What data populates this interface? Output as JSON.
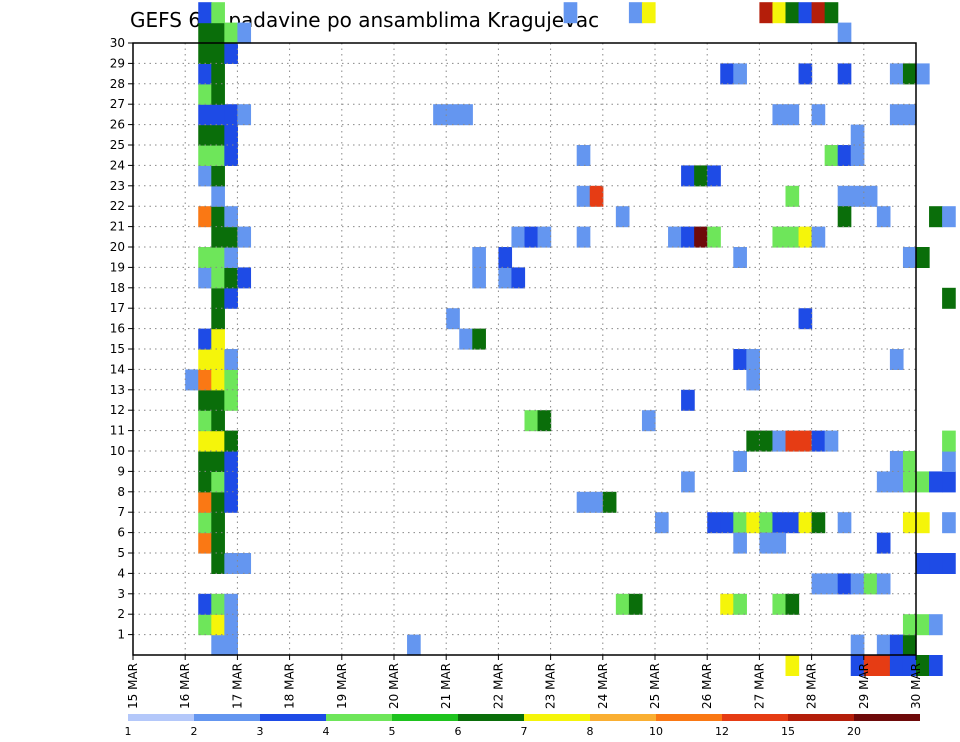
{
  "chart_data": {
    "type": "heatmap",
    "title": "GEFS 6hr padavine po ansamblima Kragujevac",
    "xlabel": "",
    "ylabel": "",
    "x_ticks": [
      "15 MAR",
      "16 MAR",
      "17 MAR",
      "18 MAR",
      "19 MAR",
      "20 MAR",
      "21 MAR",
      "22 MAR",
      "23 MAR",
      "24 MAR",
      "25 MAR",
      "26 MAR",
      "27 MAR",
      "28 MAR",
      "29 MAR",
      "30 MAR"
    ],
    "y_ticks": [
      "1",
      "2",
      "3",
      "4",
      "5",
      "6",
      "7",
      "8",
      "9",
      "10",
      "11",
      "12",
      "13",
      "14",
      "15",
      "16",
      "17",
      "18",
      "19",
      "20",
      "21",
      "22",
      "23",
      "24",
      "25",
      "26",
      "27",
      "28",
      "29",
      "30"
    ],
    "x_range_days": [
      0,
      15
    ],
    "y_range": [
      0,
      30
    ],
    "grid": true,
    "colorbar": {
      "labels": [
        "1",
        "2",
        "3",
        "4",
        "5",
        "6",
        "7",
        "8",
        "10",
        "12",
        "15",
        "20"
      ],
      "colors": [
        "#b4c8fa",
        "#6496f0",
        "#1e4be6",
        "#6ee65a",
        "#1ec31e",
        "#0a6e0a",
        "#f5f50a",
        "#faaf32",
        "#fa7814",
        "#e63c14",
        "#b41e0a",
        "#6e0a0a"
      ]
    },
    "cells": [
      [
        1.5,
        0,
        1
      ],
      [
        1.75,
        0,
        1
      ],
      [
        1.25,
        1,
        3
      ],
      [
        1.5,
        1,
        6
      ],
      [
        1.75,
        1,
        1
      ],
      [
        1.25,
        2,
        2
      ],
      [
        1.5,
        2,
        3
      ],
      [
        1.75,
        2,
        1
      ],
      [
        1.5,
        4,
        5
      ],
      [
        1.75,
        4,
        1
      ],
      [
        1.25,
        5,
        8
      ],
      [
        1.5,
        5,
        5
      ],
      [
        1.25,
        6,
        3
      ],
      [
        1.5,
        6,
        5
      ],
      [
        1.25,
        7,
        8
      ],
      [
        1.5,
        7,
        5
      ],
      [
        1.75,
        7,
        2
      ],
      [
        1.25,
        8,
        5
      ],
      [
        1.5,
        8,
        3
      ],
      [
        1.75,
        8,
        2
      ],
      [
        1.25,
        9,
        5
      ],
      [
        1.5,
        9,
        5
      ],
      [
        1.75,
        9,
        2
      ],
      [
        1.25,
        10,
        6
      ],
      [
        1.5,
        10,
        6
      ],
      [
        1.75,
        10,
        5
      ],
      [
        1.25,
        11,
        3
      ],
      [
        1.5,
        11,
        5
      ],
      [
        1.25,
        12,
        5
      ],
      [
        1.5,
        12,
        5
      ],
      [
        1.75,
        12,
        3
      ],
      [
        1.0,
        13,
        1
      ],
      [
        1.25,
        13,
        8
      ],
      [
        1.5,
        13,
        6
      ],
      [
        1.75,
        13,
        3
      ],
      [
        1.25,
        14,
        6
      ],
      [
        1.5,
        14,
        6
      ],
      [
        1.75,
        14,
        1
      ],
      [
        1.25,
        15,
        2
      ],
      [
        1.5,
        15,
        6
      ],
      [
        1.5,
        16,
        5
      ],
      [
        1.5,
        17,
        5
      ],
      [
        1.75,
        17,
        2
      ],
      [
        1.25,
        18,
        1
      ],
      [
        1.5,
        18,
        3
      ],
      [
        1.75,
        18,
        5
      ],
      [
        2.0,
        18,
        2
      ],
      [
        1.25,
        19,
        3
      ],
      [
        1.5,
        19,
        3
      ],
      [
        1.75,
        19,
        1
      ],
      [
        1.5,
        20,
        5
      ],
      [
        1.75,
        20,
        5
      ],
      [
        2.0,
        20,
        1
      ],
      [
        1.25,
        21,
        8
      ],
      [
        1.5,
        21,
        5
      ],
      [
        1.75,
        21,
        1
      ],
      [
        1.5,
        22,
        1
      ],
      [
        1.25,
        23,
        1
      ],
      [
        1.5,
        23,
        5
      ],
      [
        1.25,
        24,
        3
      ],
      [
        1.5,
        24,
        3
      ],
      [
        1.75,
        24,
        2
      ],
      [
        1.25,
        25,
        5
      ],
      [
        1.5,
        25,
        5
      ],
      [
        1.75,
        25,
        2
      ],
      [
        1.25,
        26,
        2
      ],
      [
        1.5,
        26,
        2
      ],
      [
        1.75,
        26,
        2
      ],
      [
        2.0,
        26,
        1
      ],
      [
        1.25,
        27,
        3
      ],
      [
        1.5,
        27,
        5
      ],
      [
        1.25,
        28,
        2
      ],
      [
        1.5,
        28,
        5
      ],
      [
        1.25,
        29,
        5
      ],
      [
        1.5,
        29,
        5
      ],
      [
        1.75,
        29,
        2
      ],
      [
        1.25,
        30,
        5
      ],
      [
        1.5,
        30,
        5
      ],
      [
        1.75,
        30,
        3
      ],
      [
        2.0,
        30,
        1
      ],
      [
        1.25,
        31,
        2
      ],
      [
        1.5,
        31,
        3
      ],
      [
        2.0,
        4,
        1
      ],
      [
        5.25,
        0,
        1
      ],
      [
        5.75,
        26,
        1
      ],
      [
        6.0,
        16,
        1
      ],
      [
        6.0,
        26,
        1
      ],
      [
        6.25,
        15,
        1
      ],
      [
        6.5,
        15,
        5
      ],
      [
        6.25,
        26,
        1
      ],
      [
        6.5,
        18,
        1
      ],
      [
        6.5,
        19,
        1
      ],
      [
        7.0,
        18,
        1
      ],
      [
        7.0,
        19,
        2
      ],
      [
        7.25,
        18,
        2
      ],
      [
        7.25,
        20,
        1
      ],
      [
        7.5,
        11,
        3
      ],
      [
        7.5,
        20,
        2
      ],
      [
        7.75,
        20,
        1
      ],
      [
        7.75,
        11,
        5
      ],
      [
        8.5,
        20,
        1
      ],
      [
        8.5,
        22,
        1
      ],
      [
        8.75,
        22,
        9
      ],
      [
        8.5,
        24,
        1
      ],
      [
        8.25,
        31,
        1
      ],
      [
        8.5,
        7,
        1
      ],
      [
        8.75,
        7,
        1
      ],
      [
        9.0,
        7,
        5
      ],
      [
        9.25,
        2,
        3
      ],
      [
        9.5,
        2,
        5
      ],
      [
        9.25,
        21,
        1
      ],
      [
        9.5,
        31,
        1
      ],
      [
        9.75,
        31,
        6
      ],
      [
        9.75,
        11,
        1
      ],
      [
        10.0,
        6,
        1
      ],
      [
        10.5,
        8,
        1
      ],
      [
        10.5,
        12,
        2
      ],
      [
        10.25,
        20,
        1
      ],
      [
        10.5,
        20,
        2
      ],
      [
        10.75,
        20,
        11
      ],
      [
        11.0,
        20,
        3
      ],
      [
        10.5,
        23,
        2
      ],
      [
        10.75,
        23,
        5
      ],
      [
        11.0,
        23,
        2
      ],
      [
        11.0,
        6,
        2
      ],
      [
        11.25,
        6,
        2
      ],
      [
        11.5,
        6,
        3
      ],
      [
        11.75,
        6,
        6
      ],
      [
        11.5,
        5,
        1
      ],
      [
        11.25,
        2,
        6
      ],
      [
        11.5,
        2,
        3
      ],
      [
        11.5,
        9,
        1
      ],
      [
        11.5,
        14,
        2
      ],
      [
        11.75,
        14,
        1
      ],
      [
        11.5,
        19,
        1
      ],
      [
        11.25,
        28,
        2
      ],
      [
        11.5,
        28,
        1
      ],
      [
        11.75,
        10,
        5
      ],
      [
        12.0,
        10,
        5
      ],
      [
        12.25,
        10,
        1
      ],
      [
        12.5,
        10,
        9
      ],
      [
        12.75,
        10,
        9
      ],
      [
        13.0,
        10,
        2
      ],
      [
        13.25,
        10,
        1
      ],
      [
        11.75,
        13,
        1
      ],
      [
        12.0,
        6,
        3
      ],
      [
        12.25,
        6,
        2
      ],
      [
        12.0,
        5,
        1
      ],
      [
        12.25,
        5,
        1
      ],
      [
        12.25,
        2,
        3
      ],
      [
        12.5,
        2,
        5
      ],
      [
        12.5,
        6,
        2
      ],
      [
        12.75,
        6,
        6
      ],
      [
        13.0,
        6,
        5
      ],
      [
        13.5,
        6,
        1
      ],
      [
        12.25,
        20,
        3
      ],
      [
        12.5,
        20,
        3
      ],
      [
        12.75,
        20,
        6
      ],
      [
        13.0,
        20,
        1
      ],
      [
        12.5,
        22,
        3
      ],
      [
        12.75,
        16,
        2
      ],
      [
        12.75,
        28,
        2
      ],
      [
        13.25,
        24,
        3
      ],
      [
        13.5,
        24,
        2
      ],
      [
        13.75,
        24,
        1
      ],
      [
        12.25,
        26,
        1
      ],
      [
        12.5,
        26,
        1
      ],
      [
        13.0,
        26,
        1
      ],
      [
        13.5,
        22,
        1
      ],
      [
        13.75,
        22,
        1
      ],
      [
        13.5,
        21,
        5
      ],
      [
        14.0,
        22,
        1
      ],
      [
        12.0,
        31,
        10
      ],
      [
        12.25,
        31,
        6
      ],
      [
        12.5,
        31,
        5
      ],
      [
        12.75,
        31,
        2
      ],
      [
        13.0,
        31,
        10
      ],
      [
        13.25,
        31,
        5
      ],
      [
        12.5,
        -1,
        6
      ],
      [
        13.75,
        -1,
        2
      ],
      [
        13.75,
        0,
        1
      ],
      [
        13.0,
        3,
        1
      ],
      [
        13.25,
        3,
        1
      ],
      [
        13.5,
        3,
        2
      ],
      [
        13.75,
        3,
        1
      ],
      [
        14.0,
        3,
        3
      ],
      [
        14.25,
        3,
        1
      ],
      [
        14.25,
        0,
        1
      ],
      [
        14.5,
        0,
        2
      ],
      [
        14.75,
        0,
        5
      ],
      [
        14.75,
        1,
        3
      ],
      [
        15.0,
        1,
        3
      ],
      [
        15.25,
        1,
        1
      ],
      [
        14.0,
        -1,
        9
      ],
      [
        14.25,
        -1,
        9
      ],
      [
        14.5,
        -1,
        2
      ],
      [
        14.75,
        -1,
        2
      ],
      [
        15.0,
        -1,
        5
      ],
      [
        15.25,
        -1,
        2
      ],
      [
        14.25,
        5,
        2
      ],
      [
        14.25,
        8,
        1
      ],
      [
        14.5,
        8,
        1
      ],
      [
        14.75,
        8,
        3
      ],
      [
        15.0,
        8,
        3
      ],
      [
        15.25,
        8,
        2
      ],
      [
        15.5,
        8,
        2
      ],
      [
        14.5,
        9,
        1
      ],
      [
        14.75,
        9,
        3
      ],
      [
        15.5,
        9,
        1
      ],
      [
        15.0,
        4,
        2
      ],
      [
        15.25,
        4,
        2
      ],
      [
        15.5,
        4,
        2
      ],
      [
        14.75,
        6,
        6
      ],
      [
        15.0,
        6,
        6
      ],
      [
        15.5,
        6,
        1
      ],
      [
        14.5,
        14,
        1
      ],
      [
        14.75,
        19,
        1
      ],
      [
        15.0,
        19,
        5
      ],
      [
        14.5,
        26,
        1
      ],
      [
        14.75,
        26,
        1
      ],
      [
        14.5,
        28,
        1
      ],
      [
        14.75,
        28,
        5
      ],
      [
        15.0,
        28,
        1
      ],
      [
        15.25,
        21,
        5
      ],
      [
        15.5,
        21,
        1
      ],
      [
        15.5,
        17,
        5
      ],
      [
        15.5,
        10,
        3
      ],
      [
        13.5,
        28,
        2
      ],
      [
        13.75,
        25,
        1
      ],
      [
        13.5,
        30,
        1
      ],
      [
        14.25,
        21,
        1
      ]
    ]
  }
}
